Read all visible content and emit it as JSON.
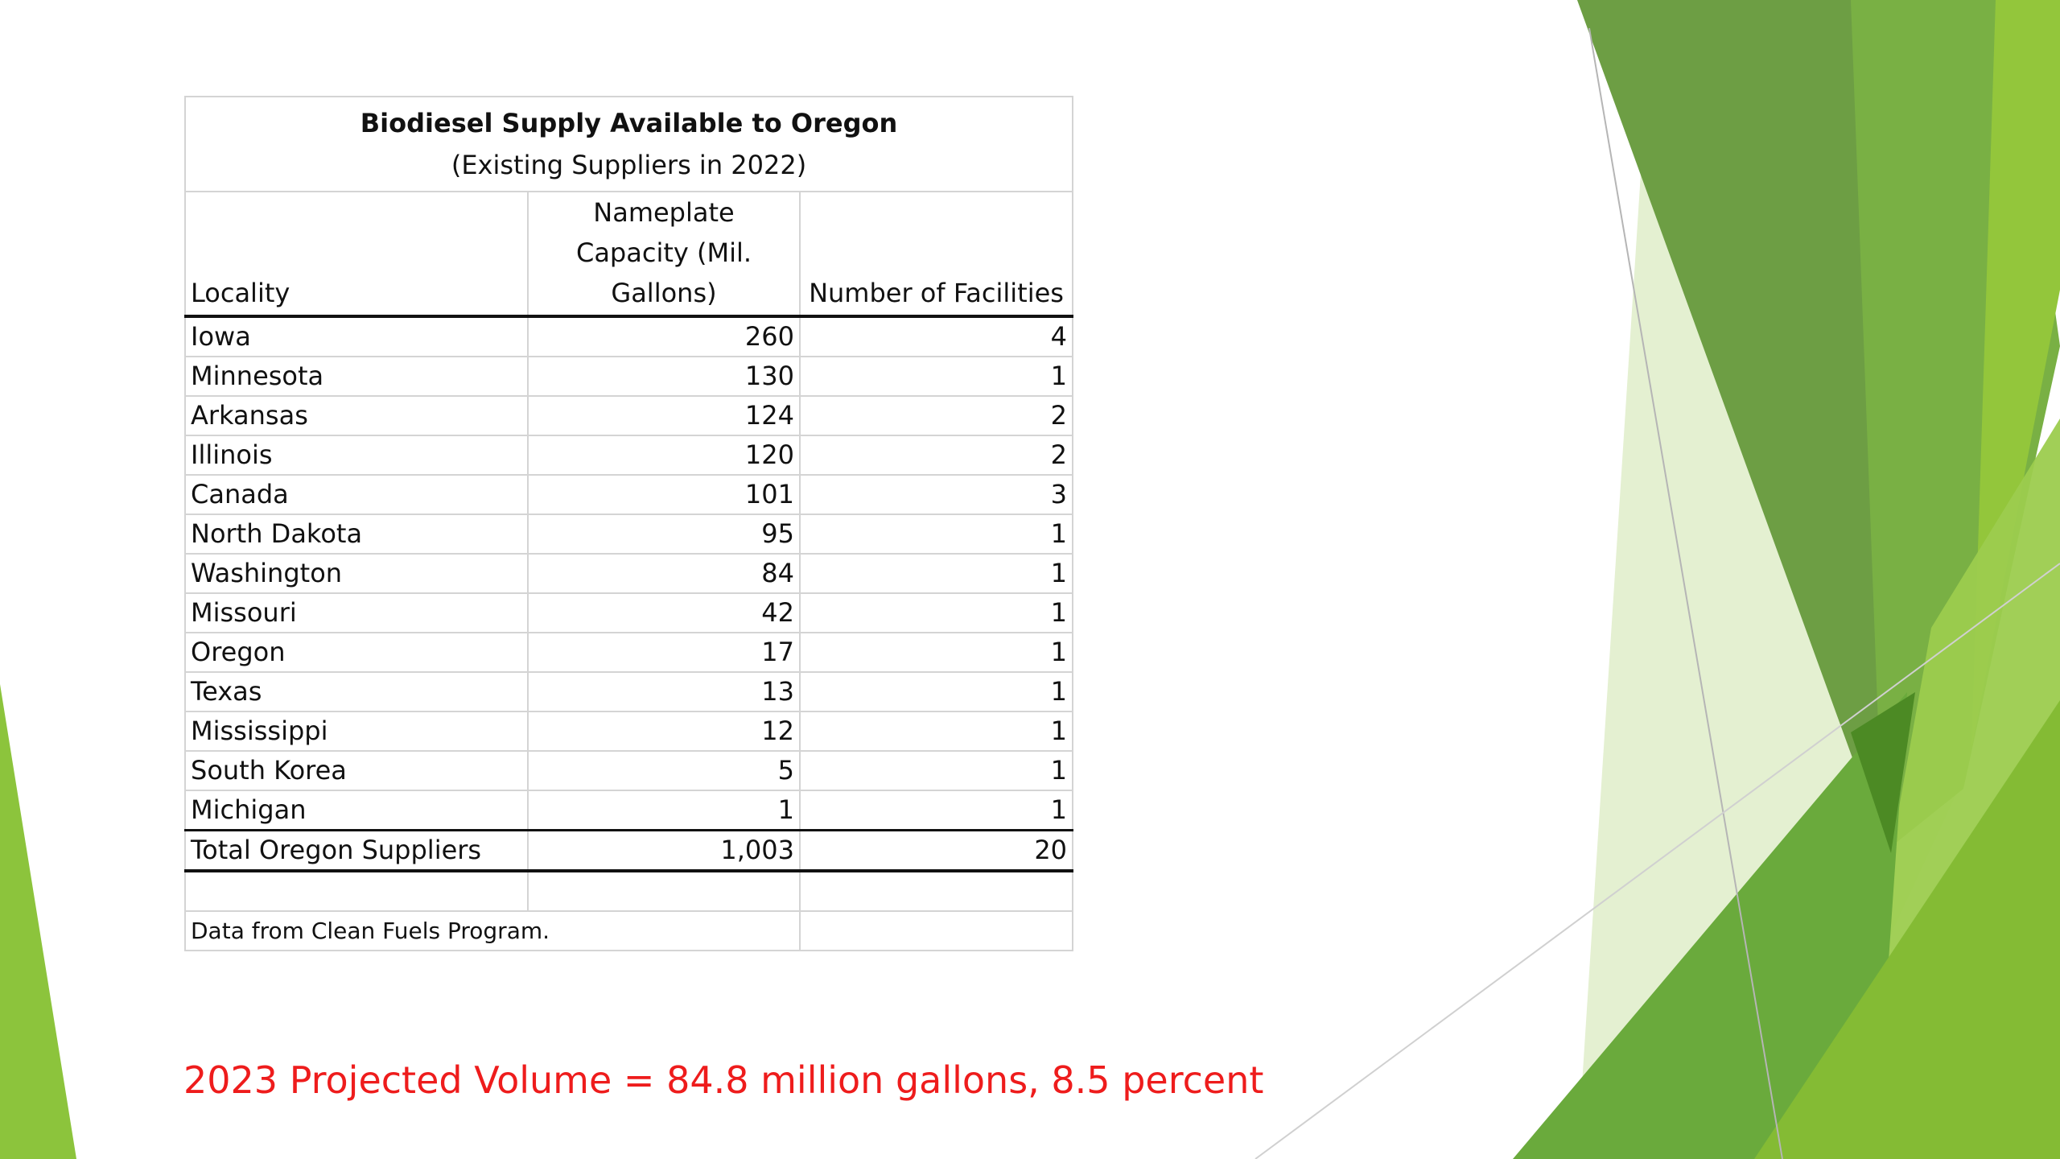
{
  "table": {
    "title": "Biodiesel Supply Available to Oregon",
    "subtitle": "(Existing Suppliers in 2022)",
    "headers": {
      "locality": "Locality",
      "capacity": "Nameplate Capacity (Mil. Gallons)",
      "facilities": "Number of Facilities"
    },
    "rows": [
      {
        "locality": "Iowa",
        "capacity": "260",
        "facilities": "4"
      },
      {
        "locality": "Minnesota",
        "capacity": "130",
        "facilities": "1"
      },
      {
        "locality": "Arkansas",
        "capacity": "124",
        "facilities": "2"
      },
      {
        "locality": "Illinois",
        "capacity": "120",
        "facilities": "2"
      },
      {
        "locality": "Canada",
        "capacity": "101",
        "facilities": "3"
      },
      {
        "locality": "North Dakota",
        "capacity": "95",
        "facilities": "1"
      },
      {
        "locality": "Washington",
        "capacity": "84",
        "facilities": "1"
      },
      {
        "locality": "Missouri",
        "capacity": "42",
        "facilities": "1"
      },
      {
        "locality": "Oregon",
        "capacity": "17",
        "facilities": "1"
      },
      {
        "locality": "Texas",
        "capacity": "13",
        "facilities": "1"
      },
      {
        "locality": "Mississippi",
        "capacity": "12",
        "facilities": "1"
      },
      {
        "locality": "South Korea",
        "capacity": "5",
        "facilities": "1"
      },
      {
        "locality": "Michigan",
        "capacity": "1",
        "facilities": "1"
      }
    ],
    "total": {
      "locality": "Total Oregon Suppliers",
      "capacity": "1,003",
      "facilities": "20"
    },
    "note": "Data from Clean Fuels Program."
  },
  "projection": "2023 Projected Volume = 84.8 million gallons, 8.5 percent",
  "colors": {
    "accent_red": "#ee1c1c",
    "green_dark": "#5e8f3a",
    "green_mid": "#7ab648",
    "green_light": "#8fc23c",
    "green_pale": "#dcebc4"
  }
}
